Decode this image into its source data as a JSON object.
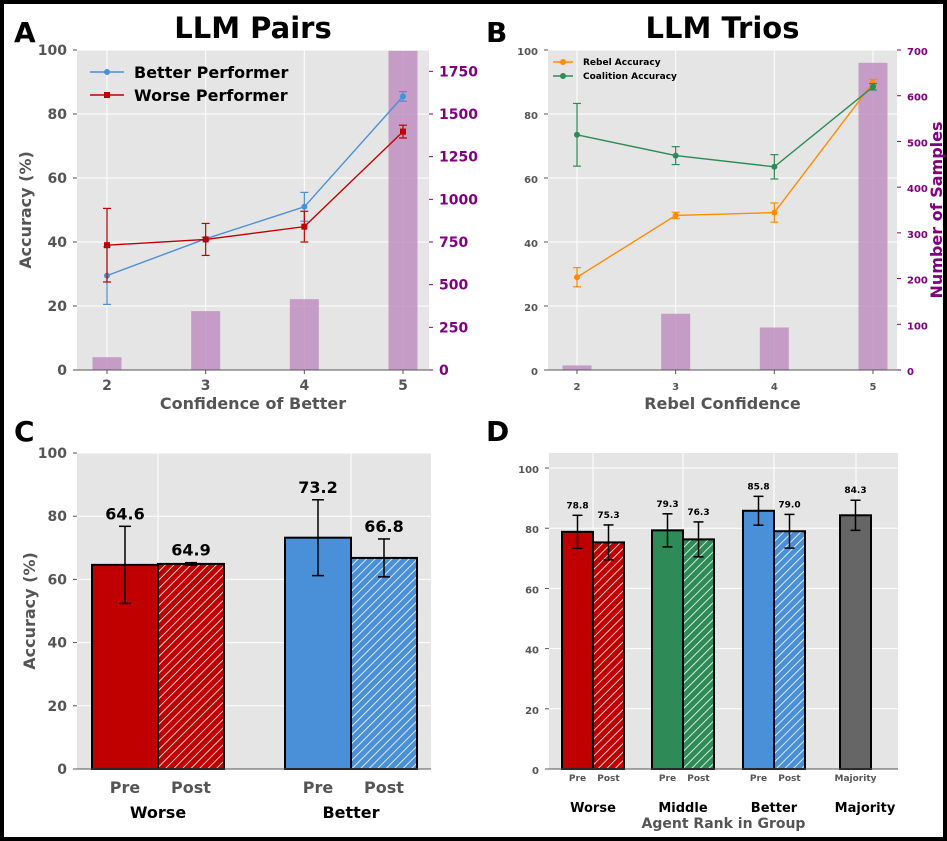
{
  "chart_data": [
    {
      "panel": "A",
      "type": "line",
      "title": "LLM Pairs",
      "xlabel": "Confidence of Better",
      "ylabel": "Accuracy (%)",
      "y2label": "",
      "categories": [
        2,
        3,
        4,
        5
      ],
      "ylim": [
        0,
        100
      ],
      "y2lim": [
        0,
        1875
      ],
      "yticks": [
        0,
        20,
        40,
        60,
        80,
        100
      ],
      "y2ticks": [
        0,
        250,
        500,
        750,
        1000,
        1250,
        1500,
        1750
      ],
      "legend": "top-left",
      "grid": true,
      "series": [
        {
          "name": "Better Performer",
          "color": "#4a90d9",
          "marker": "circle",
          "values": [
            29.5,
            41.0,
            51.0,
            85.5
          ],
          "err": [
            9.0,
            0.5,
            4.5,
            1.5
          ]
        },
        {
          "name": "Worse Performer",
          "color": "#c00000",
          "marker": "square",
          "values": [
            39.0,
            40.8,
            44.8,
            74.5
          ],
          "err": [
            11.5,
            5.0,
            4.8,
            2.0
          ]
        }
      ],
      "bars": {
        "color": "#bf8fbf",
        "values": [
          75,
          345,
          415,
          1870
        ]
      }
    },
    {
      "panel": "B",
      "type": "line",
      "title": "LLM Trios",
      "xlabel": "Rebel Confidence",
      "ylabel": "",
      "y2label": "Number of Samples",
      "categories": [
        2,
        3,
        4,
        5
      ],
      "ylim": [
        0,
        100
      ],
      "y2lim": [
        0,
        700
      ],
      "yticks": [
        0,
        20,
        40,
        60,
        80,
        100
      ],
      "y2ticks": [
        0,
        100,
        200,
        300,
        400,
        500,
        600,
        700
      ],
      "legend": "top-left",
      "grid": true,
      "series": [
        {
          "name": "Rebel Accuracy",
          "color": "#ff8c00",
          "marker": "circle",
          "values": [
            29.0,
            48.3,
            49.2,
            89.8
          ],
          "err": [
            3.0,
            1.0,
            3.0,
            1.0
          ]
        },
        {
          "name": "Coalition Accuracy",
          "color": "#2e8b57",
          "marker": "circle",
          "values": [
            73.5,
            67.0,
            63.5,
            88.5
          ],
          "err": [
            9.8,
            2.8,
            3.8,
            1.0
          ]
        }
      ],
      "bars": {
        "color": "#bf8fbf",
        "values": [
          10,
          123,
          93,
          672
        ]
      }
    },
    {
      "panel": "C",
      "type": "bar",
      "ylabel": "Accuracy (%)",
      "ylim": [
        0,
        100
      ],
      "yticks": [
        0,
        20,
        40,
        60,
        80,
        100
      ],
      "grid": true,
      "groups": [
        {
          "name": "Worse",
          "color": "#c00000",
          "bars": [
            {
              "label": "Pre",
              "value": 64.6,
              "err": 12.2,
              "hatched": false
            },
            {
              "label": "Post",
              "value": 64.9,
              "err": 0.4,
              "hatched": true
            }
          ]
        },
        {
          "name": "Better",
          "color": "#4a90d9",
          "bars": [
            {
              "label": "Pre",
              "value": 73.2,
              "err": 12.0,
              "hatched": false
            },
            {
              "label": "Post",
              "value": 66.8,
              "err": 6.0,
              "hatched": true
            }
          ]
        }
      ]
    },
    {
      "panel": "D",
      "type": "bar",
      "xlabel": "Agent Rank in Group",
      "ylim": [
        0,
        105
      ],
      "yticks": [
        0,
        20,
        40,
        60,
        80,
        100
      ],
      "grid": true,
      "groups": [
        {
          "name": "Worse",
          "color": "#c00000",
          "bars": [
            {
              "label": "Pre",
              "value": 78.8,
              "err": 5.5,
              "hatched": false
            },
            {
              "label": "Post",
              "value": 75.3,
              "err": 5.8,
              "hatched": true
            }
          ]
        },
        {
          "name": "Middle",
          "color": "#2e8b57",
          "bars": [
            {
              "label": "Pre",
              "value": 79.3,
              "err": 5.5,
              "hatched": false
            },
            {
              "label": "Post",
              "value": 76.3,
              "err": 5.8,
              "hatched": true
            }
          ]
        },
        {
          "name": "Better",
          "color": "#4a90d9",
          "bars": [
            {
              "label": "Pre",
              "value": 85.8,
              "err": 4.8,
              "hatched": false
            },
            {
              "label": "Post",
              "value": 79.0,
              "err": 5.6,
              "hatched": true
            }
          ]
        },
        {
          "name": "Majority",
          "color": "#666666",
          "bars": [
            {
              "label": "Majority",
              "value": 84.3,
              "err": 5.0,
              "hatched": false
            }
          ]
        }
      ]
    }
  ]
}
